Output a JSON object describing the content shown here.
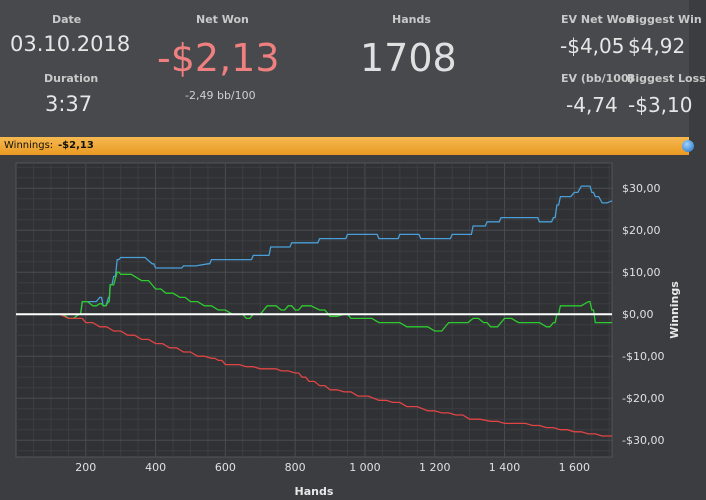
{
  "stats": {
    "date_label": "Date",
    "date_value": "03.10.2018",
    "duration_label": "Duration",
    "duration_value": "3:37",
    "net_won_label": "Net Won",
    "net_won_value": "-$2,13",
    "net_won_sub": "-2,49 bb/100",
    "hands_label": "Hands",
    "hands_value": "1708",
    "ev_net_won_label": "EV Net Won",
    "ev_net_won_value": "-$4,05",
    "biggest_win_label": "Biggest Win",
    "biggest_win_value": "$4,92",
    "ev_bb_label": "EV (bb/100)",
    "ev_bb_value": "-4,74",
    "biggest_loss_label": "Biggest Loss",
    "biggest_loss_value": "-$3,10"
  },
  "winnings_bar": {
    "label": "Winnings:",
    "value": "-$2,13",
    "icon": "globe-icon"
  },
  "colors": {
    "net_won": "#f08080",
    "series_blue": "#4a9fd9",
    "series_green": "#2ecc2e",
    "series_red": "#e04545",
    "header_bar": "#f0a838"
  },
  "chart_data": {
    "type": "line",
    "xlabel": "Hands",
    "ylabel": "Winnings",
    "xlim": [
      0,
      1708
    ],
    "ylim": [
      -34,
      36
    ],
    "x_ticks": [
      200,
      400,
      600,
      800,
      1000,
      1200,
      1400,
      1600
    ],
    "x_tick_labels": [
      "200",
      "400",
      "600",
      "800",
      "1 000",
      "1 200",
      "1 400",
      "1 600"
    ],
    "y_ticks": [
      30,
      20,
      10,
      0,
      -10,
      -20,
      -30
    ],
    "y_tick_labels": [
      "$30,00",
      "$20,00",
      "$10,00",
      "$0,00",
      "-$10,00",
      "-$20,00",
      "-$30,00"
    ],
    "grid": true,
    "series": [
      {
        "color": "#4a9fd9",
        "x": [
          0,
          120,
          150,
          180,
          190,
          220,
          240,
          250,
          265,
          270,
          280,
          290,
          300,
          350,
          390,
          400,
          420,
          470,
          480,
          550,
          560,
          670,
          680,
          720,
          730,
          780,
          790,
          860,
          870,
          940,
          950,
          1030,
          1040,
          1090,
          1100,
          1150,
          1160,
          1240,
          1250,
          1300,
          1310,
          1340,
          1350,
          1380,
          1390,
          1420,
          1430,
          1490,
          1500,
          1530,
          1540,
          1550,
          1560,
          1580,
          1600,
          1620,
          1640,
          1650,
          1660,
          1680,
          1708
        ],
        "y": [
          0,
          0,
          -1,
          0,
          3,
          3,
          4,
          2,
          4,
          7,
          9,
          13,
          13.5,
          13.5,
          12,
          11,
          11,
          11,
          11.5,
          12,
          13,
          13,
          14,
          14,
          16,
          16,
          17,
          17,
          18,
          18,
          19,
          19,
          18,
          18,
          19,
          19,
          18,
          18,
          19,
          19,
          21,
          21,
          22,
          22,
          23,
          23,
          23,
          23,
          22,
          22,
          23,
          26,
          28,
          28,
          29,
          30.5,
          30.5,
          29,
          28,
          26.5,
          27
        ]
      },
      {
        "color": "#2ecc2e",
        "x": [
          0,
          120,
          150,
          180,
          190,
          220,
          240,
          250,
          265,
          270,
          290,
          300,
          360,
          400,
          430,
          470,
          500,
          540,
          580,
          620,
          640,
          660,
          680,
          720,
          730,
          760,
          780,
          800,
          820,
          870,
          900,
          940,
          960,
          1000,
          1040,
          1080,
          1120,
          1160,
          1200,
          1240,
          1280,
          1310,
          1340,
          1360,
          1400,
          1440,
          1480,
          1520,
          1540,
          1550,
          1560,
          1600,
          1640,
          1650,
          1660,
          1680,
          1708
        ],
        "y": [
          0,
          0,
          -1,
          0,
          3,
          2,
          2.5,
          2,
          3,
          7,
          10,
          9.5,
          8,
          6,
          5,
          4,
          3,
          2,
          1,
          0,
          0,
          -1,
          0,
          2,
          2,
          1,
          2,
          1,
          2,
          1,
          -0.5,
          0,
          -1,
          -1,
          -2,
          -2,
          -3,
          -3,
          -4,
          -2,
          -2,
          -1,
          -2,
          -3,
          -1,
          -2,
          -2,
          -3,
          -2,
          0,
          2,
          2,
          3,
          1,
          -2,
          -2,
          -2
        ]
      },
      {
        "color": "#e04545",
        "x": [
          0,
          100,
          150,
          180,
          200,
          240,
          280,
          320,
          360,
          400,
          440,
          480,
          520,
          560,
          580,
          600,
          620,
          660,
          700,
          730,
          760,
          800,
          820,
          840,
          870,
          900,
          940,
          980,
          1040,
          1080,
          1120,
          1180,
          1220,
          1260,
          1300,
          1360,
          1400,
          1440,
          1480,
          1520,
          1560,
          1600,
          1640,
          1680,
          1708
        ],
        "y": [
          0,
          0,
          -1,
          -1,
          -2,
          -3,
          -4,
          -5,
          -6,
          -7,
          -8,
          -9,
          -10,
          -10.5,
          -11,
          -12,
          -12,
          -12.5,
          -13,
          -13,
          -13.5,
          -14,
          -15,
          -16,
          -17,
          -18,
          -18.5,
          -19.5,
          -20.5,
          -21,
          -22,
          -23,
          -23.5,
          -24,
          -25,
          -25.5,
          -26,
          -26,
          -26.5,
          -27,
          -27.5,
          -28,
          -28.5,
          -29,
          -29
        ]
      }
    ]
  }
}
